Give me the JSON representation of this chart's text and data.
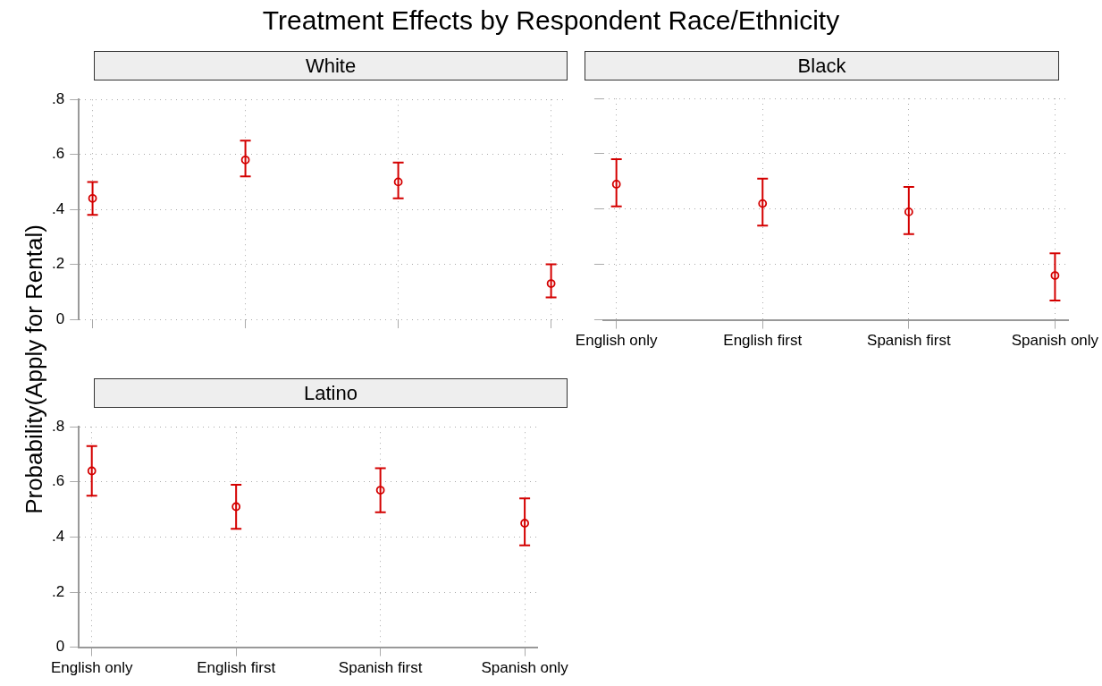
{
  "chart_data": [
    {
      "type": "scatter",
      "title": "Treatment Effects by Respondent Race/Ethnicity",
      "subtitle": "White",
      "ylabel": "Probability(Apply for Rental)",
      "categories": [
        null,
        null,
        null,
        null
      ],
      "series": [
        {
          "color": "#d40000",
          "values": [
            0.44,
            0.58,
            0.5,
            0.13
          ],
          "errors": [
            [
              0.38,
              0.5
            ],
            [
              0.52,
              0.65
            ],
            [
              0.44,
              0.57
            ],
            [
              0.08,
              0.2
            ]
          ]
        }
      ],
      "ylim": [
        0,
        0.8
      ],
      "yticks": [
        0,
        {
          "value": 0.2,
          "label": ".2"
        },
        {
          "value": 0.4,
          "label": ".4"
        },
        {
          "value": 0.6,
          "label": ".6"
        },
        {
          "value": 0.8,
          "label": ".8"
        }
      ],
      "grid": true,
      "marker": "circle",
      "tick_labels": "y"
    },
    {
      "type": "scatter",
      "subtitle": "Black",
      "categories": [
        "English only",
        "English first",
        "Spanish first",
        "Spanish only"
      ],
      "series": [
        {
          "color": "#d40000",
          "values": [
            0.49,
            0.42,
            0.39,
            0.16
          ],
          "errors": [
            [
              0.41,
              0.58
            ],
            [
              0.34,
              0.51
            ],
            [
              0.31,
              0.48
            ],
            [
              0.07,
              0.24
            ]
          ]
        }
      ],
      "ylim": [
        0,
        0.8
      ],
      "yticks": [
        {
          "value": 0,
          "label": null
        },
        {
          "value": 0.2,
          "label": null
        },
        {
          "value": 0.4,
          "label": null
        },
        {
          "value": 0.6,
          "label": null
        },
        {
          "value": 0.8,
          "label": null
        }
      ],
      "grid": true,
      "marker": "circle",
      "tick_labels": "x"
    },
    {
      "type": "scatter",
      "subtitle": "Latino",
      "categories": [
        "English only",
        "English first",
        "Spanish first",
        "Spanish only"
      ],
      "series": [
        {
          "color": "#d40000",
          "values": [
            0.64,
            0.51,
            0.57,
            0.45
          ],
          "errors": [
            [
              0.55,
              0.73
            ],
            [
              0.43,
              0.59
            ],
            [
              0.49,
              0.65
            ],
            [
              0.37,
              0.54
            ]
          ]
        }
      ],
      "ylim": [
        0,
        0.8
      ],
      "yticks": [
        0,
        {
          "value": 0.2,
          "label": ".2"
        },
        {
          "value": 0.4,
          "label": ".4"
        },
        {
          "value": 0.6,
          "label": ".6"
        },
        {
          "value": 0.8,
          "label": ".8"
        }
      ],
      "grid": true,
      "marker": "circle"
    }
  ]
}
